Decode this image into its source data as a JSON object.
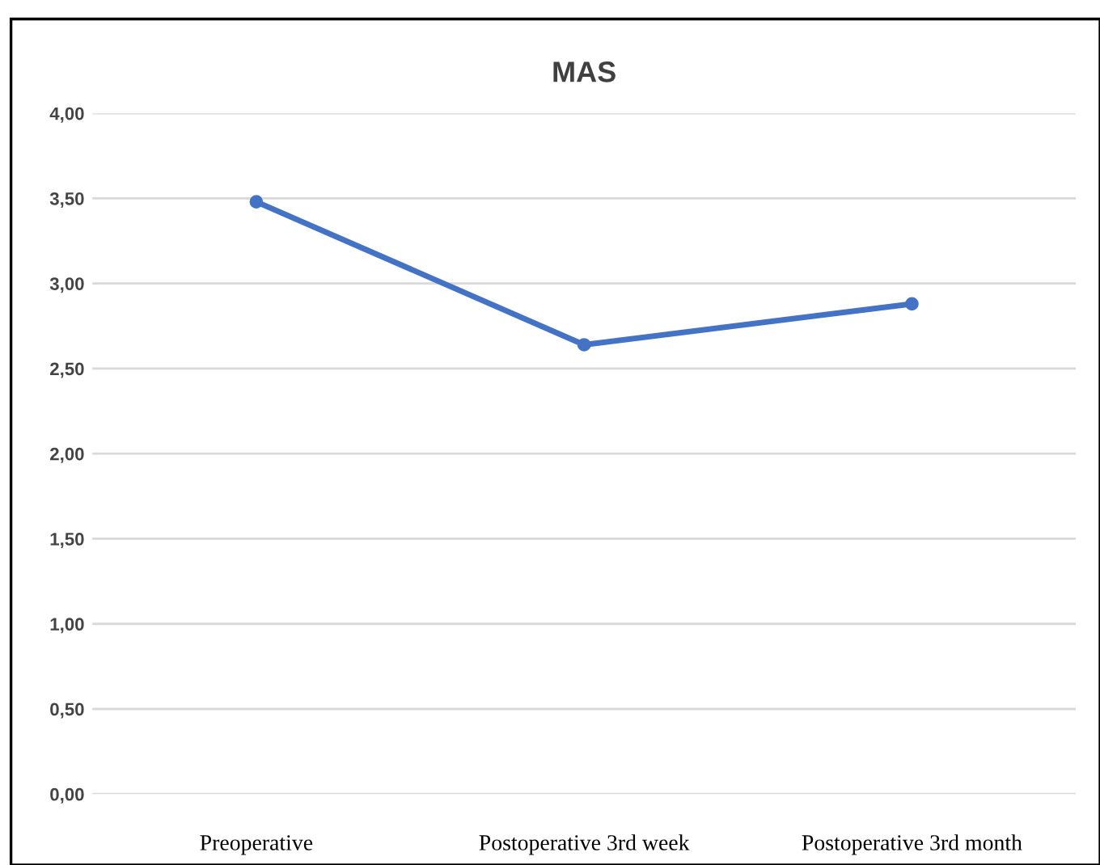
{
  "chart_data": {
    "type": "line",
    "title": "MAS",
    "categories": [
      "Preoperative",
      "Postoperative 3rd week",
      "Postoperative 3rd month"
    ],
    "series": [
      {
        "color": "#4472c4",
        "values": [
          3.48,
          2.64,
          2.88
        ]
      }
    ],
    "ylim": [
      0,
      4
    ],
    "yticks": [
      {
        "value": 0,
        "label": "0,00"
      },
      {
        "value": 0.5,
        "label": "0,50"
      },
      {
        "value": 1,
        "label": "1,00"
      },
      {
        "value": 1.5,
        "label": "1,50"
      },
      {
        "value": 2,
        "label": "2,00"
      },
      {
        "value": 2.5,
        "label": "2,50"
      },
      {
        "value": 3,
        "label": "3,00"
      },
      {
        "value": 3.5,
        "label": "3,50"
      },
      {
        "value": 4,
        "label": "4,00"
      }
    ],
    "grid": "y",
    "marker": "circle",
    "line_style": "solid",
    "legend": false
  }
}
